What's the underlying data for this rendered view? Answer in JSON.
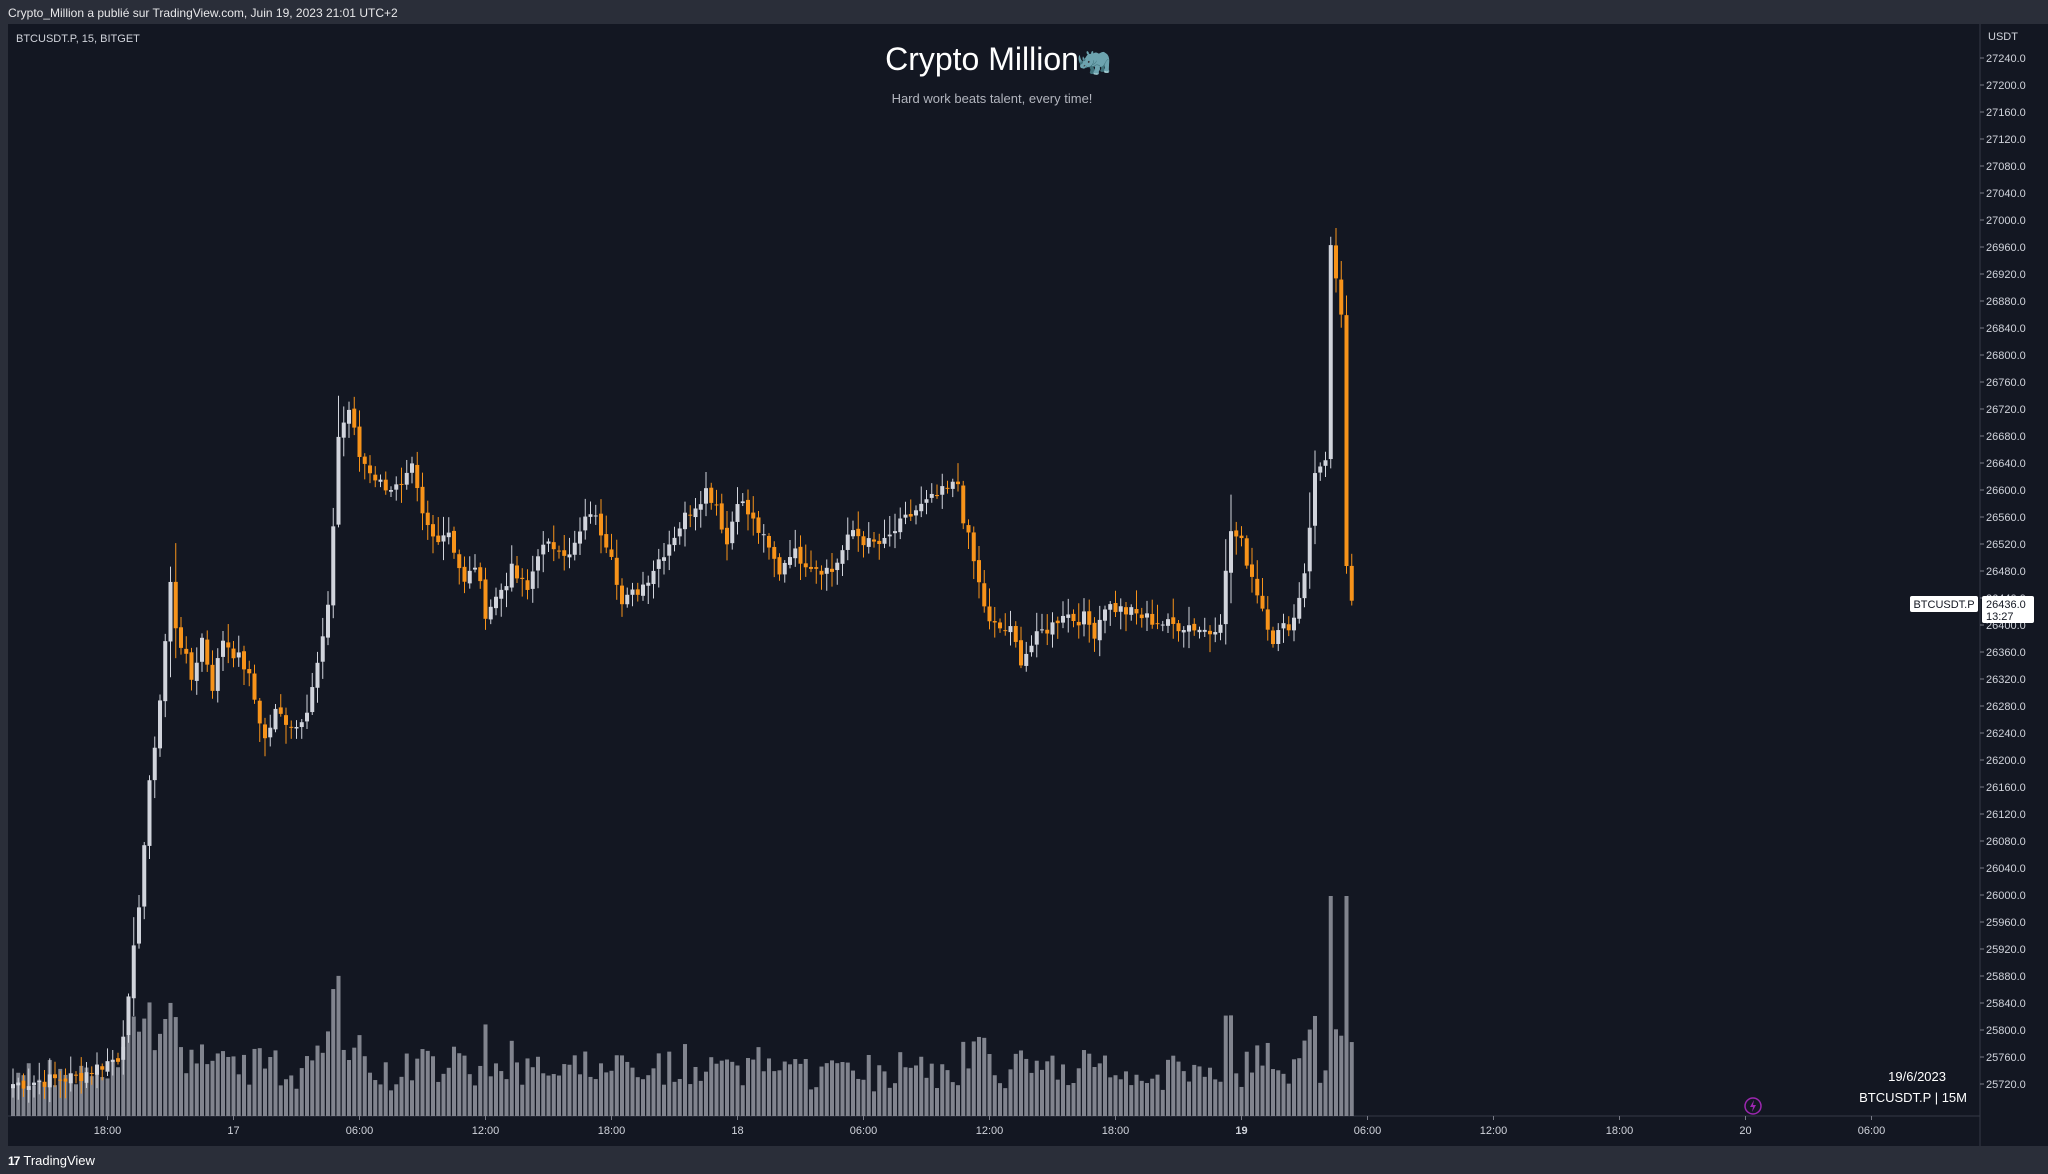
{
  "header": {
    "publish_text": "Crypto_Million a publié sur TradingView.com, Juin 19, 2023 21:01 UTC+2"
  },
  "footer": {
    "brand": "TradingView",
    "logo_mark": "17"
  },
  "chart_meta": {
    "symbol_line": "BTCUSDT.P, 15, BITGET",
    "title": "Crypto Million",
    "title_emoji": "🦏",
    "subtitle": "Hard work beats talent, every time!",
    "currency": "USDT",
    "price_tag_symbol": "BTCUSDT.P",
    "price_tag_value": "26436.0",
    "price_tag_timer": "13:27",
    "watermark_date": "19/6/2023",
    "watermark_symbol": "BTCUSDT.P | 15M",
    "colors": {
      "background": "#131722",
      "up_candle": "#d1d4dc",
      "down_candle": "#f7931a",
      "volume": "#9598a1",
      "accent_green": "#5fb88a"
    }
  },
  "chart_data": {
    "type": "candlestick",
    "y_ticks": [
      "27240.0",
      "27200.0",
      "27160.0",
      "27120.0",
      "27080.0",
      "27040.0",
      "27000.0",
      "26960.0",
      "26920.0",
      "26880.0",
      "26840.0",
      "26800.0",
      "26760.0",
      "26720.0",
      "26680.0",
      "26640.0",
      "26600.0",
      "26560.0",
      "26520.0",
      "26480.0",
      "26440.0",
      "26400.0",
      "26360.0",
      "26320.0",
      "26280.0",
      "26240.0",
      "26200.0",
      "26160.0",
      "26120.0",
      "26080.0",
      "26040.0",
      "26000.0",
      "25960.0",
      "25920.0",
      "25880.0",
      "25840.0",
      "25800.0",
      "25760.0",
      "25720.0"
    ],
    "x_ticks": [
      {
        "label": "12:00",
        "bold": false
      },
      {
        "label": "18:00",
        "bold": false
      },
      {
        "label": "17",
        "bold": false
      },
      {
        "label": "06:00",
        "bold": false
      },
      {
        "label": "12:00",
        "bold": false
      },
      {
        "label": "18:00",
        "bold": false
      },
      {
        "label": "18",
        "bold": false
      },
      {
        "label": "06:00",
        "bold": false
      },
      {
        "label": "12:00",
        "bold": false
      },
      {
        "label": "18:00",
        "bold": false
      },
      {
        "label": "19",
        "bold": true
      },
      {
        "label": "06:00",
        "bold": false
      },
      {
        "label": "12:00",
        "bold": false
      },
      {
        "label": "18:00",
        "bold": false
      },
      {
        "label": "20",
        "bold": false
      },
      {
        "label": "06:00",
        "bold": false
      }
    ],
    "ylim": [
      25680,
      27280
    ],
    "last_price": 26436.0,
    "interval": "15m",
    "bars_per_hour": 4,
    "first_bar_hour_offset": 13.5,
    "price_anchors": [
      [
        0,
        25720
      ],
      [
        12,
        25730
      ],
      [
        20,
        25760
      ],
      [
        22,
        25840
      ],
      [
        24,
        25990
      ],
      [
        26,
        26160
      ],
      [
        28,
        26290
      ],
      [
        30,
        26460
      ],
      [
        31,
        26400
      ],
      [
        34,
        26320
      ],
      [
        36,
        26380
      ],
      [
        38,
        26310
      ],
      [
        40,
        26380
      ],
      [
        42,
        26360
      ],
      [
        44,
        26340
      ],
      [
        45,
        26320
      ],
      [
        48,
        26230
      ],
      [
        50,
        26270
      ],
      [
        52,
        26260
      ],
      [
        54,
        26250
      ],
      [
        56,
        26280
      ],
      [
        58,
        26340
      ],
      [
        60,
        26420
      ],
      [
        62,
        26680
      ],
      [
        64,
        26720
      ],
      [
        66,
        26650
      ],
      [
        70,
        26610
      ],
      [
        74,
        26600
      ],
      [
        76,
        26630
      ],
      [
        78,
        26560
      ],
      [
        80,
        26530
      ],
      [
        83,
        26540
      ],
      [
        86,
        26460
      ],
      [
        88,
        26490
      ],
      [
        90,
        26420
      ],
      [
        92,
        26440
      ],
      [
        95,
        26480
      ],
      [
        98,
        26450
      ],
      [
        100,
        26510
      ],
      [
        104,
        26520
      ],
      [
        106,
        26500
      ],
      [
        110,
        26570
      ],
      [
        112,
        26540
      ],
      [
        114,
        26510
      ],
      [
        116,
        26430
      ],
      [
        120,
        26460
      ],
      [
        124,
        26510
      ],
      [
        128,
        26560
      ],
      [
        132,
        26600
      ],
      [
        134,
        26580
      ],
      [
        136,
        26520
      ],
      [
        138,
        26590
      ],
      [
        142,
        26540
      ],
      [
        146,
        26480
      ],
      [
        148,
        26510
      ],
      [
        152,
        26490
      ],
      [
        156,
        26480
      ],
      [
        160,
        26540
      ],
      [
        163,
        26520
      ],
      [
        166,
        26520
      ],
      [
        168,
        26540
      ],
      [
        172,
        26570
      ],
      [
        176,
        26590
      ],
      [
        180,
        26610
      ],
      [
        181,
        26560
      ],
      [
        184,
        26460
      ],
      [
        186,
        26400
      ],
      [
        190,
        26390
      ],
      [
        192,
        26350
      ],
      [
        194,
        26370
      ],
      [
        196,
        26390
      ],
      [
        198,
        26400
      ],
      [
        200,
        26420
      ],
      [
        202,
        26410
      ],
      [
        204,
        26410
      ],
      [
        206,
        26390
      ],
      [
        208,
        26430
      ],
      [
        212,
        26420
      ],
      [
        216,
        26410
      ],
      [
        220,
        26400
      ],
      [
        224,
        26400
      ],
      [
        228,
        26390
      ],
      [
        230,
        26410
      ],
      [
        232,
        26540
      ],
      [
        234,
        26520
      ],
      [
        237,
        26450
      ],
      [
        240,
        26380
      ],
      [
        244,
        26410
      ],
      [
        246,
        26480
      ],
      [
        248,
        26620
      ],
      [
        250,
        26650
      ],
      [
        251,
        26960
      ],
      [
        253,
        26850
      ],
      [
        254,
        26490
      ],
      [
        255,
        26436
      ]
    ],
    "volume_scale_max": 14000
  }
}
